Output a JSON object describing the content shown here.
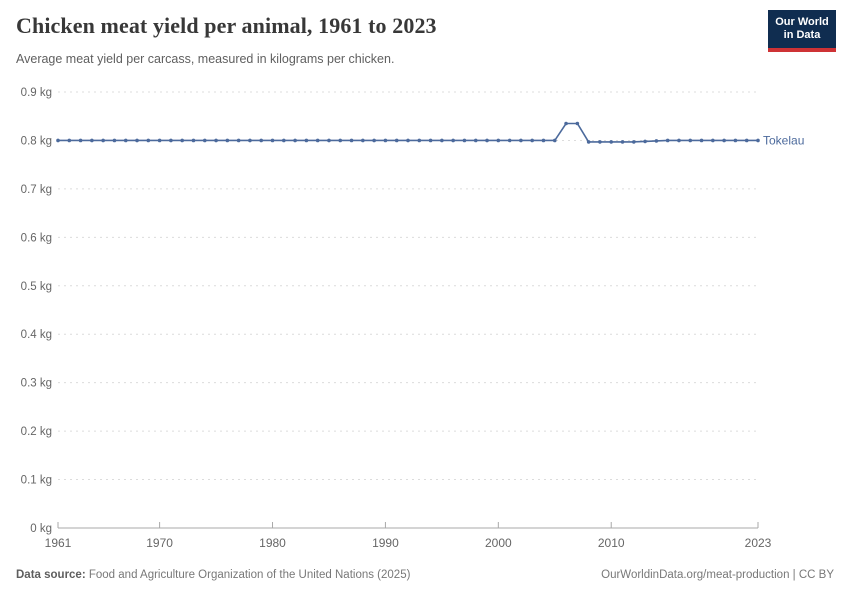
{
  "header": {
    "title": "Chicken meat yield per animal, 1961 to 2023",
    "subtitle": "Average meat yield per carcass, measured in kilograms per chicken.",
    "logo": {
      "line1": "Our World",
      "line2": "in Data"
    }
  },
  "footer": {
    "source_label": "Data source:",
    "source_text": " Food and Agriculture Organization of the United Nations (2025)",
    "right_text": "OurWorldinData.org/meat-production | CC BY"
  },
  "colors": {
    "series_blue": "#4C6A9C",
    "logo_navy": "#102D50",
    "logo_red": "#CE3235",
    "grid_gray": "#DCDCDC",
    "axis_gray": "#A8A8A8",
    "tick_text_gray": "#666666"
  },
  "chart_data": {
    "type": "line",
    "title": "Chicken meat yield per animal, 1961 to 2023",
    "subtitle": "Average meat yield per carcass, measured in kilograms per chicken.",
    "xlabel": "",
    "ylabel": "",
    "unit": "kg",
    "ylim": [
      0,
      0.9
    ],
    "yticks": [
      0,
      0.1,
      0.2,
      0.3,
      0.4,
      0.5,
      0.6,
      0.7,
      0.8,
      0.9
    ],
    "xticks": [
      1961,
      1970,
      1980,
      1990,
      2000,
      2010,
      2023
    ],
    "grid": "horizontal-dashed",
    "legend": "line-end-label",
    "x": [
      1961,
      1962,
      1963,
      1964,
      1965,
      1966,
      1967,
      1968,
      1969,
      1970,
      1971,
      1972,
      1973,
      1974,
      1975,
      1976,
      1977,
      1978,
      1979,
      1980,
      1981,
      1982,
      1983,
      1984,
      1985,
      1986,
      1987,
      1988,
      1989,
      1990,
      1991,
      1992,
      1993,
      1994,
      1995,
      1996,
      1997,
      1998,
      1999,
      2000,
      2001,
      2002,
      2003,
      2004,
      2005,
      2006,
      2007,
      2008,
      2009,
      2010,
      2011,
      2012,
      2013,
      2014,
      2015,
      2016,
      2017,
      2018,
      2019,
      2020,
      2021,
      2022,
      2023
    ],
    "series": [
      {
        "name": "Tokelau",
        "color": "#4C6A9C",
        "values": [
          0.8,
          0.8,
          0.8,
          0.8,
          0.8,
          0.8,
          0.8,
          0.8,
          0.8,
          0.8,
          0.8,
          0.8,
          0.8,
          0.8,
          0.8,
          0.8,
          0.8,
          0.8,
          0.8,
          0.8,
          0.8,
          0.8,
          0.8,
          0.8,
          0.8,
          0.8,
          0.8,
          0.8,
          0.8,
          0.8,
          0.8,
          0.8,
          0.8,
          0.8,
          0.8,
          0.8,
          0.8,
          0.8,
          0.8,
          0.8,
          0.8,
          0.8,
          0.8,
          0.8,
          0.8,
          0.835,
          0.835,
          0.797,
          0.797,
          0.797,
          0.797,
          0.797,
          0.798,
          0.799,
          0.8,
          0.8,
          0.8,
          0.8,
          0.8,
          0.8,
          0.8,
          0.8,
          0.8
        ]
      }
    ]
  }
}
